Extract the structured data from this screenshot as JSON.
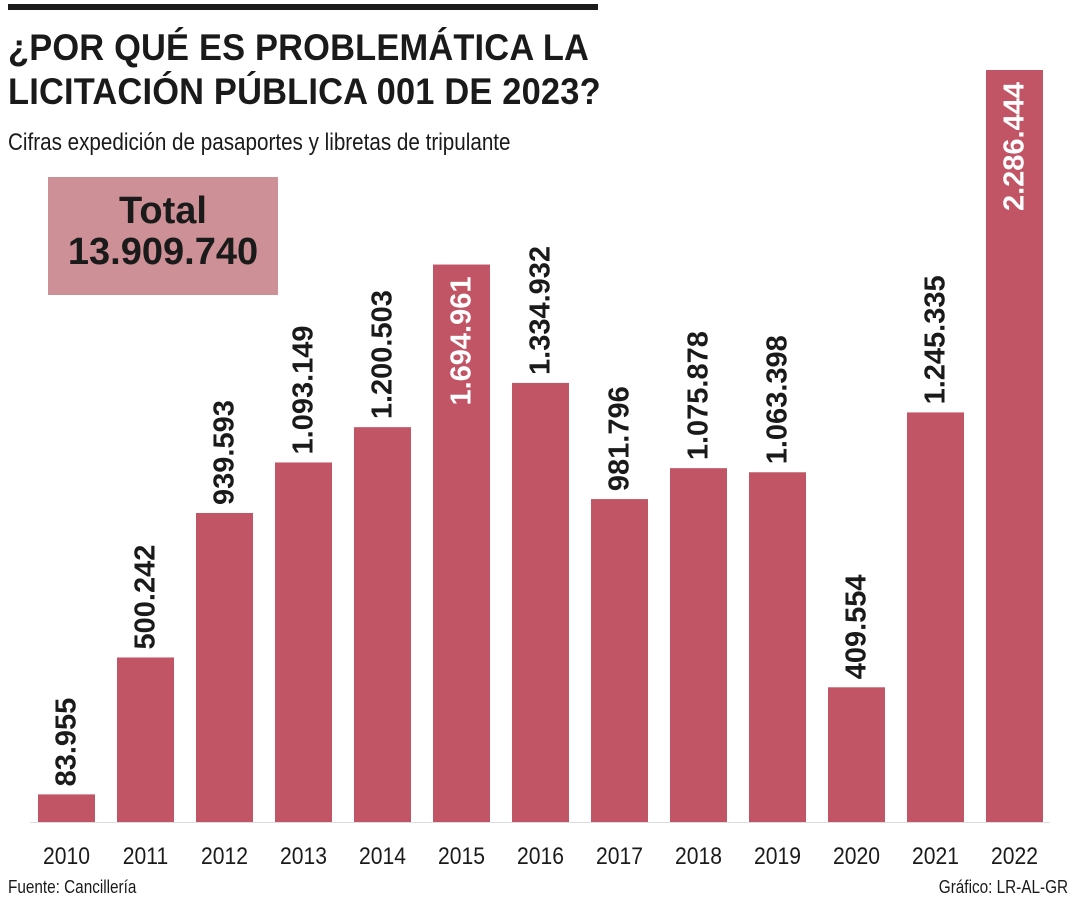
{
  "header": {
    "title": "¿POR QUÉ ES PROBLEMÁTICA LA LICITACIÓN PÚBLICA 001 DE 2023?",
    "subtitle": "Cifras expedición de pasaportes y libretas de tripulante"
  },
  "total": {
    "label": "Total",
    "value": "13.909.740"
  },
  "footer": {
    "source": "Fuente: Cancillería",
    "credit": "Gráfico: LR-AL-GR"
  },
  "colors": {
    "bar": "#c25565",
    "total_box": "#cc9096",
    "text": "#1a1a1a",
    "inside_label": "#ffffff"
  },
  "chart_data": {
    "type": "bar",
    "title": "¿POR QUÉ ES PROBLEMÁTICA LA LICITACIÓN PÚBLICA 001 DE 2023?",
    "subtitle": "Cifras expedición de pasaportes y libretas de tripulante",
    "xlabel": "",
    "ylabel": "",
    "ylim": [
      0,
      2286444
    ],
    "categories": [
      "2010",
      "2011",
      "2012",
      "2013",
      "2014",
      "2015",
      "2016",
      "2017",
      "2018",
      "2019",
      "2020",
      "2021",
      "2022"
    ],
    "values": [
      83955,
      500242,
      939593,
      1093149,
      1200503,
      1694961,
      1334932,
      981796,
      1075878,
      1063398,
      409554,
      1245335,
      2286444
    ],
    "value_labels": [
      "83.955",
      "500.242",
      "939.593",
      "1.093.149",
      "1.200.503",
      "1.694.961",
      "1.334.932",
      "981.796",
      "1.075.878",
      "1.063.398",
      "409.554",
      "1.245.335",
      "2.286.444"
    ],
    "labels_inside_bar": [
      "2015",
      "2022"
    ]
  }
}
